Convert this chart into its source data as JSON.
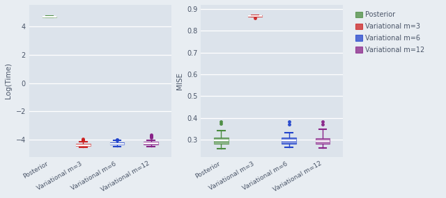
{
  "categories": [
    "Posterior",
    "Variational m=3",
    "Variational m=6",
    "Variational m=12"
  ],
  "colors_left": [
    "#4a8c3f",
    "#cc2222",
    "#2244cc",
    "#882288"
  ],
  "colors_right": [
    "#4a8c3f",
    "#cc2222",
    "#2244cc",
    "#882288"
  ],
  "left_ylabel": "Log(Time)",
  "right_ylabel": "MISE",
  "left_ylim": [
    -5.2,
    5.5
  ],
  "left_yticks": [
    -4,
    -2,
    0,
    2,
    4
  ],
  "right_ylim": [
    0.22,
    0.92
  ],
  "right_yticks": [
    0.3,
    0.4,
    0.5,
    0.6,
    0.7,
    0.8,
    0.9
  ],
  "bg_color": "#dce3eb",
  "fig_color": "#e8edf2",
  "legend_labels": [
    "Posterior",
    "Variational m=3",
    "Variational m=6",
    "Variational m=12"
  ],
  "left_boxes": {
    "Posterior": {
      "med": 4.65,
      "q1": 4.63,
      "q3": 4.67,
      "whislo": 4.6,
      "whishi": 4.7,
      "fliers_lo": [],
      "fliers_hi": []
    },
    "Variational m=3": {
      "med": -4.35,
      "q1": -4.42,
      "q3": -4.28,
      "whislo": -4.52,
      "whishi": -4.15,
      "fliers_lo": [],
      "fliers_hi": [
        -4.05,
        -4.0,
        -3.97,
        -3.93
      ]
    },
    "Variational m=6": {
      "med": -4.26,
      "q1": -4.33,
      "q3": -4.19,
      "whislo": -4.45,
      "whishi": -4.05,
      "fliers_lo": [],
      "fliers_hi": [
        -4.02,
        -3.99,
        -3.96
      ]
    },
    "Variational m=12": {
      "med": -4.22,
      "q1": -4.3,
      "q3": -4.14,
      "whislo": -4.48,
      "whishi": -4.02,
      "fliers_lo": [],
      "fliers_hi": [
        -3.65,
        -3.7,
        -3.75,
        -3.8,
        -3.85
      ]
    }
  },
  "right_boxes": {
    "Posterior": {
      "med": 0.295,
      "q1": 0.28,
      "q3": 0.308,
      "whislo": 0.258,
      "whishi": 0.34,
      "fliers_lo": [],
      "fliers_hi": [
        0.372,
        0.382
      ]
    },
    "Variational m=3": {
      "med": 0.869,
      "q1": 0.867,
      "q3": 0.871,
      "whislo": 0.864,
      "whishi": 0.873,
      "fliers_lo": [
        0.86
      ],
      "fliers_hi": []
    },
    "Variational m=6": {
      "med": 0.296,
      "q1": 0.282,
      "q3": 0.308,
      "whislo": 0.264,
      "whishi": 0.332,
      "fliers_lo": [],
      "fliers_hi": [
        0.37,
        0.382
      ]
    },
    "Variational m=12": {
      "med": 0.294,
      "q1": 0.281,
      "q3": 0.305,
      "whislo": 0.262,
      "whishi": 0.348,
      "fliers_lo": [],
      "fliers_hi": [
        0.37,
        0.382
      ]
    }
  }
}
